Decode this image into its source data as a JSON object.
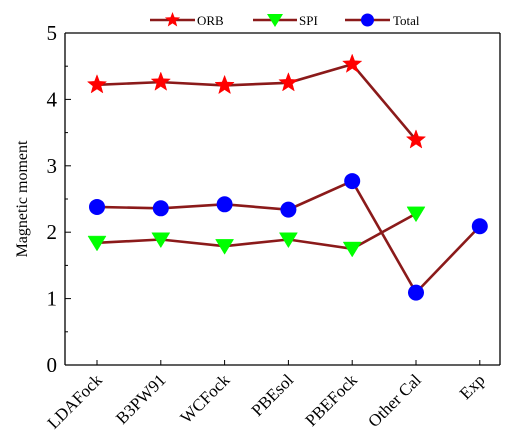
{
  "chart_data": {
    "type": "line",
    "categories": [
      "LDAFock",
      "B3PW91",
      "WCFock",
      "PBEsol",
      "PBEFock",
      "Other Cal",
      "Exp"
    ],
    "ylabel": "Magnetic moment",
    "xlabel": "",
    "ylim": [
      0,
      5
    ],
    "yticks": [
      "0",
      "1",
      "2",
      "3",
      "4",
      "5"
    ],
    "grid": false,
    "legend_placement": "top",
    "line_color": "#8b1a1a",
    "series": [
      {
        "name": "ORB",
        "marker": "star",
        "color": "#ff0000",
        "values": [
          4.22,
          4.26,
          4.21,
          4.25,
          4.53,
          3.39,
          null
        ]
      },
      {
        "name": "SPI",
        "marker": "triangle-down",
        "color": "#00ff00",
        "values": [
          1.84,
          1.89,
          1.79,
          1.89,
          1.75,
          2.28,
          null
        ]
      },
      {
        "name": "Total",
        "marker": "circle",
        "color": "#0000ff",
        "values": [
          2.38,
          2.36,
          2.42,
          2.34,
          2.77,
          1.09,
          2.09
        ]
      }
    ]
  }
}
